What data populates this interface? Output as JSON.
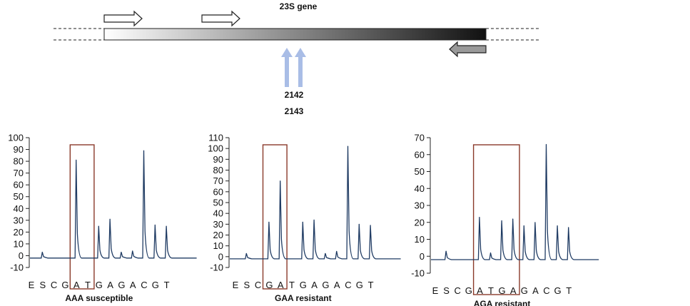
{
  "gene": {
    "label": "23S gene",
    "positions": [
      "2142",
      "2143"
    ],
    "colors": {
      "bar_start": "#ffffff",
      "bar_end": "#111111",
      "marker_arrow": "#a9bde6",
      "reverse_primer": "#9a9a9a"
    }
  },
  "colors": {
    "trace": "#1f3b63",
    "highlight_box": "#8a3a2a",
    "axis": "#222222"
  },
  "chart_data": [
    {
      "type": "line",
      "title": "AAA susceptible",
      "ylim": [
        -10,
        100
      ],
      "yticks": [
        -10,
        0,
        10,
        20,
        30,
        40,
        50,
        60,
        70,
        80,
        90,
        100
      ],
      "dispensation": [
        "E",
        "S",
        "C",
        "G",
        "A",
        "T",
        "G",
        "A",
        "G",
        "A",
        "C",
        "G",
        "T"
      ],
      "highlight": [
        4,
        5
      ],
      "baseline": -2,
      "peaks": [
        0,
        3,
        0,
        0,
        81,
        0,
        25,
        31,
        3,
        4,
        89,
        26,
        25
      ]
    },
    {
      "type": "line",
      "title": "GAA resistant",
      "ylim": [
        -10,
        110
      ],
      "yticks": [
        -10,
        0,
        10,
        20,
        30,
        40,
        50,
        60,
        70,
        80,
        90,
        100,
        110
      ],
      "dispensation": [
        "E",
        "S",
        "C",
        "G",
        "A",
        "T",
        "G",
        "A",
        "G",
        "A",
        "C",
        "G",
        "T"
      ],
      "highlight": [
        3,
        4
      ],
      "baseline": -2,
      "peaks": [
        0,
        3,
        0,
        32,
        70,
        0,
        32,
        34,
        3,
        5,
        102,
        30,
        29
      ]
    },
    {
      "type": "line",
      "title": "AGA resistant",
      "ylim": [
        -10,
        70
      ],
      "yticks": [
        -10,
        0,
        10,
        20,
        30,
        40,
        50,
        60,
        70
      ],
      "dispensation": [
        "E",
        "S",
        "C",
        "G",
        "A",
        "T",
        "G",
        "A",
        "G",
        "A",
        "C",
        "G",
        "T"
      ],
      "highlight": [
        4,
        7
      ],
      "baseline": -2,
      "peaks": [
        0,
        3,
        0,
        0,
        23,
        2,
        21,
        22,
        18,
        20,
        66,
        18,
        17
      ]
    }
  ]
}
